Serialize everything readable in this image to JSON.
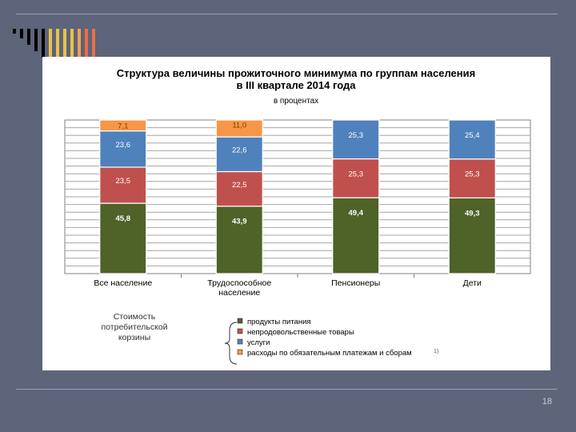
{
  "slide": {
    "number": "18"
  },
  "colors": {
    "background": "#5e6479",
    "food": "#4f6228",
    "nonfood": "#c0504d",
    "services": "#4f81bd",
    "payments": "#f79646"
  },
  "decorations": {
    "bar_colors": [
      "#000000",
      "#000000",
      "#000000",
      "#000000",
      "#000000",
      "#e8c24a",
      "#e8c24a",
      "#e8c24a",
      "#e8c24a",
      "#f0a050",
      "#e8704a",
      "#e8704a"
    ]
  },
  "basket": {
    "label_lines": [
      "Стоимость",
      "потребительской",
      "корзины"
    ]
  },
  "footnote": "1)",
  "chart_data": {
    "type": "bar",
    "stacked": true,
    "title_lines": [
      "Структура величины прожиточного минимума по группам населения",
      "в III квартале 2014 года"
    ],
    "subtitle": "в процентах",
    "categories": [
      [
        "Все население"
      ],
      [
        "Трудоспособное",
        "население"
      ],
      [
        "Пенсионеры"
      ],
      [
        "Дети"
      ]
    ],
    "series": [
      {
        "name": "продукты питания",
        "color": "#4f6228",
        "values": [
          45.8,
          43.9,
          49.4,
          49.3
        ],
        "labels": [
          "45,8",
          "43,9",
          "49,4",
          "49,3"
        ]
      },
      {
        "name": "непродовольственные товары",
        "color": "#c0504d",
        "values": [
          23.5,
          22.5,
          25.3,
          25.3
        ],
        "labels": [
          "23,5",
          "22,5",
          "25,3",
          "25,3"
        ]
      },
      {
        "name": "услуги",
        "color": "#4f81bd",
        "values": [
          23.6,
          22.6,
          25.3,
          25.4
        ],
        "labels": [
          "23,6",
          "22,6",
          "25,3",
          "25,4"
        ]
      },
      {
        "name": "расходы по обязательным платежам и сборам",
        "color": "#f79646",
        "values": [
          7.1,
          11.0,
          0,
          0
        ],
        "labels": [
          "7,1",
          "11,0",
          "",
          ""
        ]
      }
    ],
    "ylim": [
      0,
      100
    ],
    "grid": true,
    "legend_position": "bottom-center"
  }
}
